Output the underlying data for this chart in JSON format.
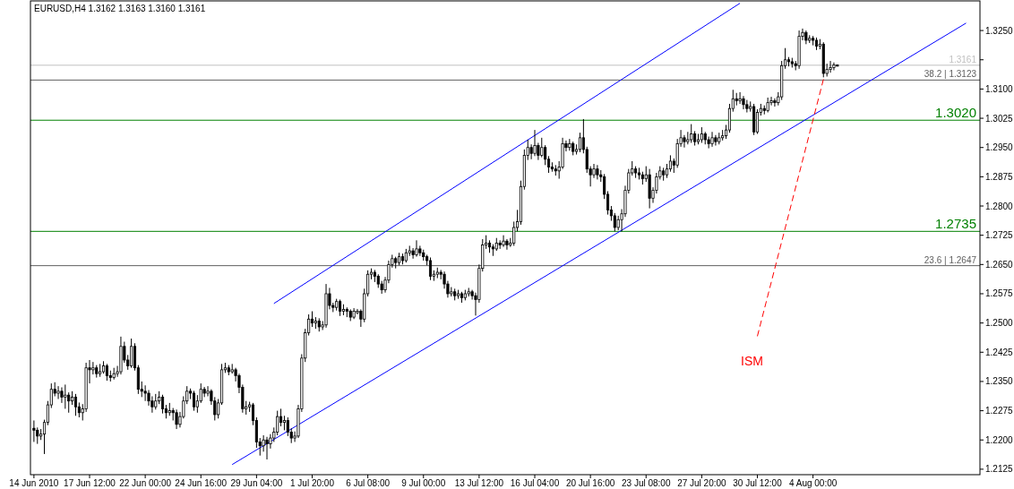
{
  "chart_data": {
    "type": "candlestick",
    "title": "EURUSD,H4  1.3162 1.3163 1.3160 1.3161",
    "categories": [
      "14 Jun 2010",
      null,
      null,
      null,
      null,
      null,
      null,
      null,
      null,
      null,
      null,
      null,
      null,
      null,
      null,
      null,
      "17 Jun 12:00",
      null,
      null,
      null,
      null,
      null,
      null,
      null,
      null,
      null,
      null,
      null,
      null,
      null,
      null,
      null,
      "22 Jun 00:00",
      null,
      null,
      null,
      null,
      null,
      null,
      null,
      null,
      null,
      null,
      null,
      null,
      null,
      null,
      null,
      "24 Jun 16:00",
      null,
      null,
      null,
      null,
      null,
      null,
      null,
      null,
      null,
      null,
      null,
      null,
      null,
      null,
      null,
      "29 Jun 04:00",
      null,
      null,
      null,
      null,
      null,
      null,
      null,
      null,
      null,
      null,
      null,
      null,
      null,
      null,
      null,
      "1 Jul 20:00",
      null,
      null,
      null,
      null,
      null,
      null,
      null,
      null,
      null,
      null,
      null,
      null,
      null,
      null,
      null,
      "6 Jul 08:00",
      null,
      null,
      null,
      null,
      null,
      null,
      null,
      null,
      null,
      null,
      null,
      null,
      null,
      null,
      null,
      "9 Jul 00:00",
      null,
      null,
      null,
      null,
      null,
      null,
      null,
      null,
      null,
      null,
      null,
      null,
      null,
      null,
      null,
      "13 Jul 12:00",
      null,
      null,
      null,
      null,
      null,
      null,
      null,
      null,
      null,
      null,
      null,
      null,
      null,
      null,
      null,
      "16 Jul 04:00",
      null,
      null,
      null,
      null,
      null,
      null,
      null,
      null,
      null,
      null,
      null,
      null,
      null,
      null,
      null,
      "20 Jul 16:00",
      null,
      null,
      null,
      null,
      null,
      null,
      null,
      null,
      null,
      null,
      null,
      null,
      null,
      null,
      null,
      "23 Jul 08:00",
      null,
      null,
      null,
      null,
      null,
      null,
      null,
      null,
      null,
      null,
      null,
      null,
      null,
      null,
      null,
      "27 Jul 20:00",
      null,
      null,
      null,
      null,
      null,
      null,
      null,
      null,
      null,
      null,
      null,
      null,
      null,
      null,
      null,
      "30 Jul 12:00",
      null,
      null,
      null,
      null,
      null,
      null,
      null,
      null,
      null,
      null,
      null,
      null,
      null,
      null,
      null,
      "4 Aug 00:00",
      null,
      null,
      null,
      null,
      null,
      null,
      null,
      null,
      null,
      null,
      null,
      null,
      null,
      null,
      null,
      null,
      null,
      null,
      null,
      null,
      null,
      null,
      null,
      null,
      null,
      null,
      null,
      null,
      null,
      null,
      null,
      null,
      null,
      null,
      null,
      null,
      null,
      null,
      null,
      null,
      null,
      null,
      null,
      null,
      null,
      null,
      null
    ],
    "ohlc": [
      [
        1.223,
        1.225,
        1.2195,
        1.2225
      ],
      [
        1.2225,
        1.2232,
        1.219,
        1.221
      ],
      [
        1.221,
        1.2228,
        1.22,
        1.2215
      ],
      [
        1.2215,
        1.2252,
        1.2164,
        1.2245
      ],
      [
        1.2245,
        1.23,
        1.2238,
        1.229
      ],
      [
        1.229,
        1.2345,
        1.2282,
        1.233
      ],
      [
        1.233,
        1.2348,
        1.2312,
        1.232
      ],
      [
        1.232,
        1.2338,
        1.2305,
        1.2325
      ],
      [
        1.2325,
        1.2335,
        1.2295,
        1.231
      ],
      [
        1.231,
        1.2342,
        1.228,
        1.2315
      ],
      [
        1.2315,
        1.2322,
        1.227,
        1.23
      ],
      [
        1.23,
        1.2325,
        1.229,
        1.231
      ],
      [
        1.231,
        1.2318,
        1.2262,
        1.2285
      ],
      [
        1.2285,
        1.2296,
        1.2258,
        1.227
      ],
      [
        1.227,
        1.2292,
        1.225,
        1.228
      ],
      [
        1.228,
        1.2398,
        1.2272,
        1.2385
      ],
      [
        1.2385,
        1.2405,
        1.2345,
        1.238
      ],
      [
        1.238,
        1.24,
        1.2368,
        1.2385
      ],
      [
        1.2385,
        1.2392,
        1.236,
        1.237
      ],
      [
        1.237,
        1.2395,
        1.2362,
        1.2375
      ],
      [
        1.2375,
        1.2402,
        1.237,
        1.239
      ],
      [
        1.239,
        1.2395,
        1.2352,
        1.2365
      ],
      [
        1.2365,
        1.2378,
        1.235,
        1.236
      ],
      [
        1.236,
        1.2385,
        1.2355,
        1.237
      ],
      [
        1.237,
        1.239,
        1.2362,
        1.2375
      ],
      [
        1.2375,
        1.2465,
        1.2368,
        1.244
      ],
      [
        1.244,
        1.2452,
        1.2398,
        1.2405
      ],
      [
        1.2405,
        1.2418,
        1.238,
        1.239
      ],
      [
        1.239,
        1.246,
        1.2385,
        1.244
      ],
      [
        1.244,
        1.2448,
        1.2378,
        1.2385
      ],
      [
        1.2385,
        1.2392,
        1.2318,
        1.233
      ],
      [
        1.233,
        1.235,
        1.231,
        1.2325
      ],
      [
        1.2325,
        1.234,
        1.23,
        1.232
      ],
      [
        1.232,
        1.2328,
        1.2288,
        1.23
      ],
      [
        1.23,
        1.2312,
        1.227,
        1.2285
      ],
      [
        1.2285,
        1.2318,
        1.2278,
        1.23
      ],
      [
        1.23,
        1.2325,
        1.2292,
        1.231
      ],
      [
        1.231,
        1.2316,
        1.2268,
        1.228
      ],
      [
        1.228,
        1.229,
        1.2255,
        1.227
      ],
      [
        1.227,
        1.2295,
        1.2262,
        1.2275
      ],
      [
        1.2275,
        1.2282,
        1.225,
        1.227
      ],
      [
        1.227,
        1.2278,
        1.2228,
        1.224
      ],
      [
        1.224,
        1.2272,
        1.2232,
        1.226
      ],
      [
        1.226,
        1.2312,
        1.2255,
        1.23
      ],
      [
        1.23,
        1.2338,
        1.2292,
        1.2325
      ],
      [
        1.2325,
        1.2332,
        1.2305,
        1.232
      ],
      [
        1.232,
        1.2326,
        1.2275,
        1.2285
      ],
      [
        1.2285,
        1.2315,
        1.227,
        1.23
      ],
      [
        1.23,
        1.2345,
        1.2295,
        1.233
      ],
      [
        1.233,
        1.2336,
        1.231,
        1.232
      ],
      [
        1.232,
        1.2338,
        1.2312,
        1.2325
      ],
      [
        1.2325,
        1.233,
        1.229,
        1.23
      ],
      [
        1.23,
        1.231,
        1.225,
        1.2265
      ],
      [
        1.2265,
        1.2305,
        1.2255,
        1.2295
      ],
      [
        1.2295,
        1.2395,
        1.229,
        1.238
      ],
      [
        1.238,
        1.2398,
        1.2372,
        1.2385
      ],
      [
        1.2385,
        1.2392,
        1.2366,
        1.2375
      ],
      [
        1.2375,
        1.2395,
        1.237,
        1.238
      ],
      [
        1.238,
        1.2385,
        1.235,
        1.2365
      ],
      [
        1.2365,
        1.237,
        1.232,
        1.2335
      ],
      [
        1.2335,
        1.2342,
        1.227,
        1.228
      ],
      [
        1.228,
        1.23,
        1.2265,
        1.2285
      ],
      [
        1.2285,
        1.2298,
        1.2272,
        1.229
      ],
      [
        1.229,
        1.2295,
        1.2238,
        1.225
      ],
      [
        1.225,
        1.2258,
        1.218,
        1.2195
      ],
      [
        1.2195,
        1.2205,
        1.216,
        1.2185
      ],
      [
        1.2185,
        1.2212,
        1.217,
        1.22
      ],
      [
        1.22,
        1.2208,
        1.215,
        1.219
      ],
      [
        1.219,
        1.2215,
        1.2178,
        1.2205
      ],
      [
        1.2205,
        1.2232,
        1.2195,
        1.222
      ],
      [
        1.222,
        1.2275,
        1.2212,
        1.226
      ],
      [
        1.226,
        1.228,
        1.2235,
        1.2245
      ],
      [
        1.2245,
        1.2262,
        1.2225,
        1.225
      ],
      [
        1.225,
        1.2258,
        1.221,
        1.222
      ],
      [
        1.222,
        1.223,
        1.2192,
        1.2205
      ],
      [
        1.2205,
        1.2222,
        1.2195,
        1.221
      ],
      [
        1.221,
        1.229,
        1.2205,
        1.228
      ],
      [
        1.228,
        1.242,
        1.2272,
        1.241
      ],
      [
        1.241,
        1.2485,
        1.24,
        1.2475
      ],
      [
        1.2475,
        1.2522,
        1.2468,
        1.251
      ],
      [
        1.251,
        1.253,
        1.249,
        1.25
      ],
      [
        1.25,
        1.2515,
        1.2485,
        1.2505
      ],
      [
        1.2505,
        1.2512,
        1.2478,
        1.249
      ],
      [
        1.249,
        1.2505,
        1.2482,
        1.2495
      ],
      [
        1.2495,
        1.26,
        1.2488,
        1.2575
      ],
      [
        1.2575,
        1.259,
        1.2535,
        1.2545
      ],
      [
        1.2545,
        1.2552,
        1.2528,
        1.254
      ],
      [
        1.254,
        1.2562,
        1.2532,
        1.2555
      ],
      [
        1.2555,
        1.256,
        1.2518,
        1.253
      ],
      [
        1.253,
        1.2548,
        1.252,
        1.2535
      ],
      [
        1.2535,
        1.254,
        1.2515,
        1.253
      ],
      [
        1.253,
        1.2535,
        1.2505,
        1.2515
      ],
      [
        1.2515,
        1.2538,
        1.251,
        1.253
      ],
      [
        1.253,
        1.2536,
        1.2522,
        1.253
      ],
      [
        1.253,
        1.2535,
        1.249,
        1.251
      ],
      [
        1.251,
        1.2588,
        1.2502,
        1.2575
      ],
      [
        1.2575,
        1.2635,
        1.2568,
        1.2625
      ],
      [
        1.2625,
        1.264,
        1.2612,
        1.263
      ],
      [
        1.263,
        1.2636,
        1.2605,
        1.262
      ],
      [
        1.262,
        1.2625,
        1.259,
        1.26
      ],
      [
        1.26,
        1.2608,
        1.2575,
        1.2585
      ],
      [
        1.2585,
        1.2618,
        1.2578,
        1.261
      ],
      [
        1.261,
        1.266,
        1.2602,
        1.265
      ],
      [
        1.265,
        1.2675,
        1.2642,
        1.2665
      ],
      [
        1.2665,
        1.267,
        1.264,
        1.2655
      ],
      [
        1.2655,
        1.268,
        1.2648,
        1.267
      ],
      [
        1.267,
        1.2678,
        1.265,
        1.266
      ],
      [
        1.266,
        1.269,
        1.2655,
        1.268
      ],
      [
        1.268,
        1.2698,
        1.2672,
        1.2685
      ],
      [
        1.2685,
        1.2692,
        1.2665,
        1.2675
      ],
      [
        1.2675,
        1.2712,
        1.267,
        1.269
      ],
      [
        1.269,
        1.2698,
        1.2672,
        1.268
      ],
      [
        1.268,
        1.2688,
        1.266,
        1.267
      ],
      [
        1.267,
        1.2675,
        1.2648,
        1.266
      ],
      [
        1.266,
        1.2668,
        1.261,
        1.262
      ],
      [
        1.262,
        1.2635,
        1.2608,
        1.2625
      ],
      [
        1.2625,
        1.2642,
        1.2615,
        1.263
      ],
      [
        1.263,
        1.2636,
        1.2612,
        1.2625
      ],
      [
        1.2625,
        1.2632,
        1.2588,
        1.26
      ],
      [
        1.26,
        1.2608,
        1.2565,
        1.2575
      ],
      [
        1.2575,
        1.2592,
        1.2568,
        1.258
      ],
      [
        1.258,
        1.2588,
        1.2558,
        1.257
      ],
      [
        1.257,
        1.2585,
        1.2562,
        1.2575
      ],
      [
        1.2575,
        1.258,
        1.2552,
        1.2565
      ],
      [
        1.2565,
        1.2585,
        1.2558,
        1.2575
      ],
      [
        1.2575,
        1.259,
        1.2568,
        1.258
      ],
      [
        1.258,
        1.2585,
        1.256,
        1.257
      ],
      [
        1.257,
        1.2578,
        1.2519,
        1.256
      ],
      [
        1.256,
        1.265,
        1.2552,
        1.264
      ],
      [
        1.264,
        1.2715,
        1.2632,
        1.27
      ],
      [
        1.27,
        1.2725,
        1.269,
        1.2705
      ],
      [
        1.2705,
        1.2712,
        1.268,
        1.2695
      ],
      [
        1.2695,
        1.2702,
        1.2672,
        1.269
      ],
      [
        1.269,
        1.2718,
        1.2685,
        1.2705
      ],
      [
        1.2705,
        1.2712,
        1.269,
        1.27
      ],
      [
        1.27,
        1.2725,
        1.2695,
        1.271
      ],
      [
        1.271,
        1.2715,
        1.2688,
        1.27
      ],
      [
        1.27,
        1.2718,
        1.2695,
        1.2705
      ],
      [
        1.2705,
        1.276,
        1.2698,
        1.2745
      ],
      [
        1.2745,
        1.279,
        1.2735,
        1.276
      ],
      [
        1.276,
        1.2865,
        1.2752,
        1.285
      ],
      [
        1.285,
        1.2945,
        1.2842,
        1.293
      ],
      [
        1.293,
        1.297,
        1.2918,
        1.295
      ],
      [
        1.295,
        1.2958,
        1.292,
        1.2935
      ],
      [
        1.2935,
        1.2995,
        1.2928,
        1.2955
      ],
      [
        1.2955,
        1.2962,
        1.2918,
        1.293
      ],
      [
        1.293,
        1.2975,
        1.2925,
        1.295
      ],
      [
        1.295,
        1.2956,
        1.2905,
        1.292
      ],
      [
        1.292,
        1.2928,
        1.2885,
        1.29
      ],
      [
        1.29,
        1.2912,
        1.2888,
        1.2895
      ],
      [
        1.2895,
        1.2905,
        1.2878,
        1.289
      ],
      [
        1.289,
        1.2915,
        1.287,
        1.29
      ],
      [
        1.29,
        1.2975,
        1.2895,
        1.296
      ],
      [
        1.296,
        1.2968,
        1.294,
        1.295
      ],
      [
        1.295,
        1.2972,
        1.2942,
        1.296
      ],
      [
        1.296,
        1.2965,
        1.293,
        1.294
      ],
      [
        1.294,
        1.2958,
        1.2932,
        1.2945
      ],
      [
        1.2945,
        1.2988,
        1.2938,
        1.2975
      ],
      [
        1.2975,
        1.3023,
        1.2935,
        1.2945
      ],
      [
        1.2945,
        1.2952,
        1.2885,
        1.2895
      ],
      [
        1.2895,
        1.2902,
        1.285,
        1.288
      ],
      [
        1.288,
        1.2908,
        1.2872,
        1.2895
      ],
      [
        1.2895,
        1.2905,
        1.2868,
        1.288
      ],
      [
        1.288,
        1.2892,
        1.2862,
        1.2875
      ],
      [
        1.2875,
        1.2882,
        1.2818,
        1.283
      ],
      [
        1.283,
        1.2838,
        1.2778,
        1.279
      ],
      [
        1.279,
        1.28,
        1.2762,
        1.2775
      ],
      [
        1.2775,
        1.2782,
        1.2735,
        1.2745
      ],
      [
        1.2745,
        1.2775,
        1.2738,
        1.2765
      ],
      [
        1.2765,
        1.2792,
        1.2735,
        1.278
      ],
      [
        1.278,
        1.2852,
        1.2772,
        1.284
      ],
      [
        1.284,
        1.2895,
        1.2832,
        1.2885
      ],
      [
        1.2885,
        1.2915,
        1.2878,
        1.2895
      ],
      [
        1.2895,
        1.2902,
        1.2872,
        1.2885
      ],
      [
        1.2885,
        1.2898,
        1.2868,
        1.288
      ],
      [
        1.288,
        1.2888,
        1.2855,
        1.287
      ],
      [
        1.287,
        1.2902,
        1.2862,
        1.288
      ],
      [
        1.288,
        1.2895,
        1.2794,
        1.282
      ],
      [
        1.282,
        1.2848,
        1.2808,
        1.284
      ],
      [
        1.284,
        1.2885,
        1.2832,
        1.2875
      ],
      [
        1.2875,
        1.2902,
        1.2868,
        1.289
      ],
      [
        1.289,
        1.2898,
        1.2865,
        1.288
      ],
      [
        1.288,
        1.2908,
        1.2872,
        1.2895
      ],
      [
        1.2895,
        1.293,
        1.2888,
        1.2915
      ],
      [
        1.2915,
        1.2922,
        1.2885,
        1.2905
      ],
      [
        1.2905,
        1.2972,
        1.2898,
        1.296
      ],
      [
        1.296,
        1.2995,
        1.2952,
        1.2975
      ],
      [
        1.2975,
        1.2982,
        1.295,
        1.2965
      ],
      [
        1.2965,
        1.299,
        1.2958,
        1.297
      ],
      [
        1.297,
        1.301,
        1.2962,
        1.2985
      ],
      [
        1.2985,
        1.2992,
        1.2955,
        1.2965
      ],
      [
        1.2965,
        1.2985,
        1.2958,
        1.297
      ],
      [
        1.297,
        1.3002,
        1.2962,
        1.2985
      ],
      [
        1.2985,
        1.299,
        1.2958,
        1.297
      ],
      [
        1.297,
        1.2978,
        1.2948,
        1.296
      ],
      [
        1.296,
        1.299,
        1.2952,
        1.2975
      ],
      [
        1.2975,
        1.2982,
        1.2955,
        1.2965
      ],
      [
        1.2965,
        1.2988,
        1.2958,
        1.2975
      ],
      [
        1.2975,
        1.2995,
        1.2968,
        1.298
      ],
      [
        1.298,
        1.3008,
        1.2972,
        1.2995
      ],
      [
        1.2995,
        1.3062,
        1.2988,
        1.305
      ],
      [
        1.305,
        1.3098,
        1.3042,
        1.3075
      ],
      [
        1.3075,
        1.309,
        1.3058,
        1.307
      ],
      [
        1.307,
        1.3092,
        1.3062,
        1.3075
      ],
      [
        1.3075,
        1.3082,
        1.3048,
        1.306
      ],
      [
        1.306,
        1.3072,
        1.304,
        1.305
      ],
      [
        1.305,
        1.3068,
        1.3042,
        1.3055
      ],
      [
        1.3055,
        1.3062,
        1.2982,
        1.299
      ],
      [
        1.299,
        1.3048,
        1.2985,
        1.304
      ],
      [
        1.304,
        1.3062,
        1.3032,
        1.305
      ],
      [
        1.305,
        1.3058,
        1.3035,
        1.3045
      ],
      [
        1.3045,
        1.3078,
        1.304,
        1.3065
      ],
      [
        1.3065,
        1.308,
        1.3058,
        1.307
      ],
      [
        1.307,
        1.3076,
        1.3055,
        1.3065
      ],
      [
        1.3065,
        1.3092,
        1.3058,
        1.308
      ],
      [
        1.308,
        1.3172,
        1.3072,
        1.316
      ],
      [
        1.316,
        1.3205,
        1.3152,
        1.3175
      ],
      [
        1.3175,
        1.3182,
        1.3158,
        1.317
      ],
      [
        1.317,
        1.318,
        1.3155,
        1.3165
      ],
      [
        1.3165,
        1.3172,
        1.3148,
        1.316
      ],
      [
        1.316,
        1.325,
        1.3152,
        1.3235
      ],
      [
        1.3235,
        1.3255,
        1.3225,
        1.3245
      ],
      [
        1.3245,
        1.325,
        1.3215,
        1.3225
      ],
      [
        1.3225,
        1.3238,
        1.3218,
        1.323
      ],
      [
        1.323,
        1.3236,
        1.3212,
        1.3225
      ],
      [
        1.3225,
        1.3232,
        1.32,
        1.321
      ],
      [
        1.321,
        1.3228,
        1.3202,
        1.3215
      ],
      [
        1.3215,
        1.322,
        1.313,
        1.314
      ],
      [
        1.314,
        1.3165,
        1.3132,
        1.315
      ],
      [
        1.315,
        1.3172,
        1.3142,
        1.3155
      ],
      [
        1.3155,
        1.3168,
        1.3148,
        1.3162
      ],
      [
        1.3162,
        1.3163,
        1.316,
        1.3161
      ],
      null,
      null,
      null,
      null,
      null,
      null,
      null,
      null,
      null,
      null,
      null,
      null,
      null,
      null,
      null,
      null,
      null,
      null,
      null,
      null,
      null,
      null,
      null,
      null,
      null,
      null,
      null,
      null,
      null,
      null,
      null,
      null,
      null,
      null,
      null,
      null,
      null,
      null,
      null,
      null
    ],
    "series": [
      {
        "type": "line",
        "color": "#0000ff",
        "values": [
          null,
          null,
          null,
          null,
          null,
          null,
          null,
          null,
          null,
          null,
          null,
          null,
          null,
          null,
          null,
          null,
          null,
          null,
          null,
          null,
          null,
          null,
          null,
          null,
          null,
          null,
          null,
          null,
          null,
          null,
          null,
          null,
          null,
          null,
          null,
          null,
          null,
          null,
          null,
          null,
          null,
          null,
          null,
          null,
          null,
          null,
          null,
          null,
          null,
          null,
          null,
          null,
          null,
          null,
          null,
          null,
          null,
          null,
          null,
          null,
          null,
          null,
          null,
          null,
          null,
          null,
          null,
          null,
          null,
          1.255,
          null,
          null,
          null,
          null,
          null,
          null,
          null,
          null,
          null,
          null,
          null,
          null,
          null,
          null,
          null,
          null,
          null,
          null,
          null,
          null,
          null,
          null,
          null,
          null,
          null,
          null,
          null,
          null,
          null,
          null,
          null,
          null,
          null,
          null,
          null,
          null,
          null,
          null,
          null,
          null,
          null,
          null,
          null,
          null,
          null,
          null,
          null,
          null,
          null,
          null,
          null,
          null,
          null,
          null,
          null,
          null,
          null,
          null,
          null,
          null,
          null,
          null,
          null,
          null,
          null,
          null,
          null,
          null,
          null,
          null,
          null,
          null,
          null,
          null,
          null,
          null,
          null,
          null,
          null,
          null,
          null,
          null,
          null,
          null,
          null,
          null,
          null,
          null,
          null,
          null,
          null,
          null,
          null,
          null,
          null,
          null,
          null,
          null,
          null,
          null,
          null,
          null,
          null,
          null,
          null,
          null,
          null,
          null,
          null,
          null,
          null,
          null,
          null,
          null,
          null,
          null,
          null,
          null,
          null,
          null,
          null,
          null,
          null,
          null,
          null,
          null,
          null,
          null,
          null,
          null,
          null,
          null,
          null,
          1.332,
          null,
          null,
          null,
          null,
          null,
          null,
          null,
          null,
          null,
          null,
          null,
          null,
          null,
          null,
          null,
          null,
          null,
          null,
          null,
          null,
          null,
          null,
          null,
          null,
          null,
          null,
          null,
          null,
          null,
          null,
          null,
          null,
          null,
          null,
          null,
          null,
          null,
          null,
          null,
          null,
          null,
          null,
          null,
          null,
          null,
          null,
          null,
          null,
          null,
          null,
          null,
          null,
          null,
          null,
          null,
          null,
          null,
          null,
          null,
          null,
          null,
          null,
          null,
          null,
          null,
          null,
          null,
          null
        ]
      },
      {
        "type": "line",
        "color": "#0000ff",
        "values": [
          null,
          null,
          null,
          null,
          null,
          null,
          null,
          null,
          null,
          null,
          null,
          null,
          null,
          null,
          null,
          null,
          null,
          null,
          null,
          null,
          null,
          null,
          null,
          null,
          null,
          null,
          null,
          null,
          null,
          null,
          null,
          null,
          null,
          null,
          null,
          null,
          null,
          null,
          null,
          null,
          null,
          null,
          null,
          null,
          null,
          null,
          null,
          null,
          null,
          null,
          null,
          null,
          null,
          null,
          null,
          null,
          null,
          1.2137,
          null,
          null,
          null,
          null,
          null,
          null,
          null,
          null,
          null,
          null,
          null,
          null,
          null,
          null,
          null,
          null,
          null,
          null,
          null,
          null,
          null,
          null,
          null,
          null,
          null,
          null,
          null,
          null,
          null,
          null,
          null,
          null,
          null,
          null,
          null,
          null,
          null,
          null,
          null,
          null,
          null,
          null,
          null,
          null,
          null,
          null,
          null,
          null,
          null,
          null,
          null,
          null,
          null,
          null,
          null,
          null,
          null,
          null,
          null,
          null,
          null,
          null,
          null,
          null,
          null,
          null,
          null,
          null,
          null,
          null,
          null,
          null,
          null,
          null,
          null,
          null,
          null,
          null,
          null,
          null,
          null,
          null,
          null,
          null,
          null,
          null,
          null,
          null,
          null,
          null,
          null,
          null,
          null,
          null,
          null,
          null,
          null,
          null,
          null,
          null,
          null,
          null,
          null,
          null,
          null,
          null,
          null,
          null,
          null,
          null,
          null,
          null,
          null,
          null,
          null,
          null,
          null,
          null,
          null,
          null,
          null,
          null,
          null,
          null,
          null,
          null,
          null,
          null,
          null,
          null,
          null,
          null,
          null,
          null,
          null,
          null,
          null,
          null,
          null,
          null,
          null,
          null,
          null,
          null,
          null,
          null,
          null,
          null,
          null,
          null,
          null,
          null,
          null,
          null,
          null,
          null,
          null,
          null,
          null,
          null,
          null,
          null,
          null,
          null,
          null,
          null,
          null,
          null,
          null,
          null,
          null,
          null,
          null,
          null,
          null,
          null,
          null,
          null,
          null,
          null,
          null,
          null,
          null,
          null,
          null,
          null,
          null,
          null,
          null,
          null,
          null,
          null,
          null,
          null,
          null,
          null,
          null,
          null,
          null,
          null,
          null,
          null,
          null,
          null,
          null,
          null,
          null,
          null,
          null,
          null,
          1.3269,
          null,
          null,
          null
        ]
      },
      {
        "type": "line",
        "color": "#ff0000",
        "line_style": "dashed",
        "values": [
          null,
          null,
          null,
          null,
          null,
          null,
          null,
          null,
          null,
          null,
          null,
          null,
          null,
          null,
          null,
          null,
          null,
          null,
          null,
          null,
          null,
          null,
          null,
          null,
          null,
          null,
          null,
          null,
          null,
          null,
          null,
          null,
          null,
          null,
          null,
          null,
          null,
          null,
          null,
          null,
          null,
          null,
          null,
          null,
          null,
          null,
          null,
          null,
          null,
          null,
          null,
          null,
          null,
          null,
          null,
          null,
          null,
          null,
          null,
          null,
          null,
          null,
          null,
          null,
          null,
          null,
          null,
          null,
          null,
          null,
          null,
          null,
          null,
          null,
          null,
          null,
          null,
          null,
          null,
          null,
          null,
          null,
          null,
          null,
          null,
          null,
          null,
          null,
          null,
          null,
          null,
          null,
          null,
          null,
          null,
          null,
          null,
          null,
          null,
          null,
          null,
          null,
          null,
          null,
          null,
          null,
          null,
          null,
          null,
          null,
          null,
          null,
          null,
          null,
          null,
          null,
          null,
          null,
          null,
          null,
          null,
          null,
          null,
          null,
          null,
          null,
          null,
          null,
          null,
          null,
          null,
          null,
          null,
          null,
          null,
          null,
          null,
          null,
          null,
          null,
          null,
          null,
          null,
          null,
          null,
          null,
          null,
          null,
          null,
          null,
          null,
          null,
          null,
          null,
          null,
          null,
          null,
          null,
          null,
          null,
          null,
          null,
          null,
          null,
          null,
          null,
          null,
          null,
          null,
          null,
          null,
          null,
          null,
          null,
          null,
          null,
          null,
          null,
          null,
          null,
          null,
          null,
          null,
          null,
          null,
          null,
          null,
          null,
          null,
          null,
          null,
          null,
          null,
          null,
          null,
          null,
          null,
          null,
          null,
          null,
          null,
          null,
          null,
          null,
          null,
          null,
          null,
          null,
          1.2466,
          null,
          null,
          null,
          null,
          null,
          null,
          null,
          null,
          null,
          null,
          null,
          null,
          null,
          null,
          null,
          null,
          null,
          null,
          1.3125,
          null,
          null,
          null,
          null,
          null,
          null,
          null,
          null,
          null,
          null,
          null,
          null,
          null,
          null,
          null,
          null,
          null,
          null,
          null,
          null,
          null,
          null,
          null,
          null,
          null,
          null,
          null,
          null,
          null,
          null,
          null,
          null,
          null,
          null,
          null,
          null,
          null,
          null,
          null,
          null,
          null,
          null,
          null,
          null
        ]
      }
    ],
    "ylim": [
      1.2111,
      1.3326
    ],
    "yticks": [
      {
        "value": 1.2125,
        "label": "1.2125"
      },
      {
        "value": 1.22,
        "label": "1.2200"
      },
      {
        "value": 1.2275,
        "label": "1.2275"
      },
      {
        "value": 1.235,
        "label": "1.2350"
      },
      {
        "value": 1.2425,
        "label": "1.2425"
      },
      {
        "value": 1.25,
        "label": "1.2500"
      },
      {
        "value": 1.2575,
        "label": "1.2575"
      },
      {
        "value": 1.265,
        "label": "1.2650"
      },
      {
        "value": 1.2725,
        "label": "1.2725"
      },
      {
        "value": 1.28,
        "label": "1.2800"
      },
      {
        "value": 1.2875,
        "label": "1.2875"
      },
      {
        "value": 1.295,
        "label": "1.2950"
      },
      {
        "value": 1.3025,
        "label": "1.3025"
      },
      {
        "value": 1.31,
        "label": "1.3100"
      },
      {
        "value": 1.3175,
        "label": null
      },
      {
        "value": 1.325,
        "label": "1.3250"
      }
    ],
    "ref_lines": [
      {
        "axis": "y",
        "value": 1.3161,
        "label": "1.3161",
        "color": "#c0c0c0"
      },
      {
        "axis": "y",
        "value": 1.3123,
        "label": "38.2 | 1.3123",
        "color": "#606060"
      },
      {
        "axis": "y",
        "value": 1.2647,
        "label": "23.6 | 1.2647",
        "color": "#606060"
      },
      {
        "axis": "y",
        "value": 1.302,
        "label": "1.3020",
        "color": "#008000"
      },
      {
        "axis": "y",
        "value": 1.2735,
        "label": "1.2735",
        "color": "#008000"
      }
    ],
    "annotations": [
      "ISM"
    ]
  }
}
